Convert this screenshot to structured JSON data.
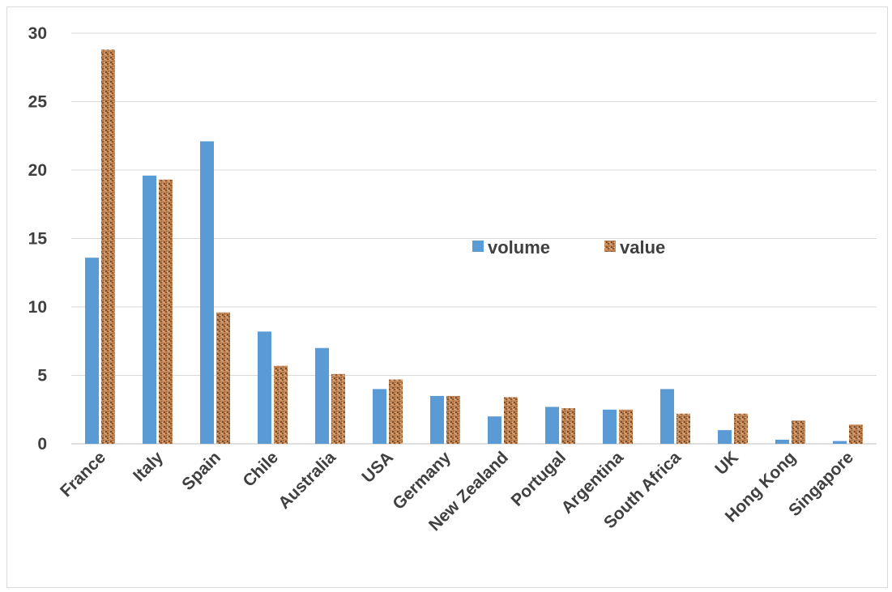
{
  "chart_data": {
    "type": "bar",
    "categories": [
      "France",
      "Italy",
      "Spain",
      "Chile",
      "Australia",
      "USA",
      "Germany",
      "New Zealand",
      "Portugal",
      "Argentina",
      "South Africa",
      "UK",
      "Hong Kong",
      "Singapore"
    ],
    "series": [
      {
        "name": "volume",
        "values": [
          13.6,
          19.6,
          22.1,
          8.2,
          7.0,
          4.0,
          3.5,
          2.0,
          2.7,
          2.5,
          4.0,
          1.0,
          0.3,
          0.2
        ],
        "color": "#5b9bd5"
      },
      {
        "name": "value",
        "values": [
          28.8,
          19.3,
          9.6,
          5.7,
          5.1,
          4.7,
          3.5,
          3.4,
          2.6,
          2.5,
          2.2,
          2.2,
          1.7,
          1.4
        ],
        "color": "#c1875a"
      }
    ],
    "yticks": [
      "0",
      "5",
      "10",
      "15",
      "20",
      "25",
      "30"
    ],
    "ylim": [
      0,
      30
    ],
    "grid": true,
    "legend_position": "center-right",
    "title": "",
    "xlabel": "",
    "ylabel": ""
  }
}
